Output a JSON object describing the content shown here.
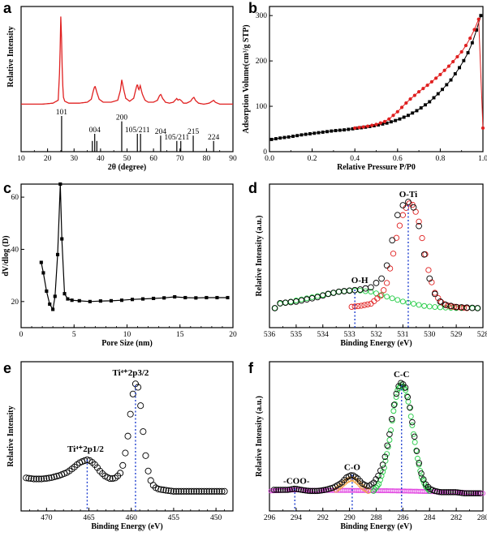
{
  "chart_data": [
    {
      "type": "line",
      "panel": "a",
      "xlabel": "2θ (degree)",
      "ylabel": "Relative Intensity",
      "xlim": [
        10,
        90
      ],
      "xticks": [
        "10",
        "20",
        "30",
        "40",
        "50",
        "60",
        "70",
        "80",
        "90"
      ],
      "colors": {
        "pattern": "#e02020",
        "reference": "#000000"
      },
      "series": [
        {
          "x": [
            10,
            14,
            18,
            22,
            24,
            24.6,
            25.0,
            25.3,
            25.6,
            26.0,
            26.5,
            28,
            32,
            35,
            36.5,
            37.3,
            37.9,
            38.6,
            39.5,
            41,
            44,
            46.5,
            47.5,
            48.0,
            48.6,
            49.5,
            51,
            52.5,
            53.4,
            53.9,
            54.4,
            55.0,
            55.8,
            56.8,
            58,
            60,
            61.5,
            62.3,
            62.8,
            63.4,
            64.5,
            66,
            67.5,
            68.5,
            68.8,
            69.2,
            69.8,
            70.3,
            70.7,
            71.3,
            72.5,
            74,
            74.8,
            75.3,
            75.8,
            77,
            79,
            81,
            82.2,
            82.7,
            83.3,
            85,
            87,
            90
          ],
          "y": [
            0.08,
            0.08,
            0.08,
            0.09,
            0.12,
            0.45,
            0.98,
            0.72,
            0.33,
            0.15,
            0.11,
            0.09,
            0.09,
            0.1,
            0.13,
            0.22,
            0.27,
            0.2,
            0.13,
            0.1,
            0.1,
            0.12,
            0.22,
            0.33,
            0.25,
            0.14,
            0.11,
            0.14,
            0.24,
            0.29,
            0.22,
            0.27,
            0.18,
            0.12,
            0.1,
            0.1,
            0.12,
            0.17,
            0.18,
            0.14,
            0.1,
            0.09,
            0.1,
            0.13,
            0.14,
            0.12,
            0.13,
            0.12,
            0.11,
            0.09,
            0.09,
            0.11,
            0.14,
            0.15,
            0.12,
            0.09,
            0.08,
            0.09,
            0.11,
            0.12,
            0.1,
            0.08,
            0.08,
            0.08
          ]
        }
      ],
      "reference_lines": [
        {
          "x": 25.3,
          "h": 1.0,
          "label": "101"
        },
        {
          "x": 36.9,
          "h": 0.3,
          "label": ""
        },
        {
          "x": 37.8,
          "h": 0.5,
          "label": "004"
        },
        {
          "x": 38.6,
          "h": 0.3,
          "label": ""
        },
        {
          "x": 48.0,
          "h": 0.85,
          "label": "200"
        },
        {
          "x": 53.9,
          "h": 0.5,
          "label": "105/211"
        },
        {
          "x": 55.1,
          "h": 0.5,
          "label": ""
        },
        {
          "x": 62.7,
          "h": 0.45,
          "label": "204"
        },
        {
          "x": 68.8,
          "h": 0.3,
          "label": "105/211"
        },
        {
          "x": 70.3,
          "h": 0.3,
          "label": ""
        },
        {
          "x": 75.0,
          "h": 0.45,
          "label": "215"
        },
        {
          "x": 82.7,
          "h": 0.3,
          "label": "224"
        }
      ]
    },
    {
      "type": "line",
      "panel": "b",
      "xlabel": "Relative Pressure P/P0",
      "ylabel": "Adsorption Volume(cm³/g STP)",
      "xlim": [
        0,
        1
      ],
      "ylim": [
        0,
        320
      ],
      "xticks": [
        "0.0",
        "0.2",
        "0.4",
        "0.6",
        "0.8",
        "1.0"
      ],
      "yticks": [
        "0",
        "100",
        "200",
        "300"
      ],
      "colors": {
        "adsorption": "#000000",
        "desorption": "#e02020"
      },
      "series": [
        {
          "name": "adsorption",
          "marker": "square",
          "x": [
            0.01,
            0.05,
            0.1,
            0.15,
            0.2,
            0.25,
            0.3,
            0.35,
            0.4,
            0.45,
            0.5,
            0.55,
            0.6,
            0.65,
            0.7,
            0.75,
            0.8,
            0.85,
            0.9,
            0.93,
            0.95,
            0.97,
            0.98,
            0.99,
            1.0
          ],
          "y": [
            27,
            30,
            33,
            37,
            40,
            43,
            46,
            48,
            51,
            54,
            58,
            63,
            70,
            80,
            93,
            110,
            132,
            158,
            192,
            218,
            240,
            268,
            285,
            300,
            315
          ]
        },
        {
          "name": "desorption",
          "marker": "circle",
          "x": [
            1.0,
            0.99,
            0.98,
            0.97,
            0.95,
            0.92,
            0.9,
            0.85,
            0.8,
            0.75,
            0.7,
            0.65,
            0.6,
            0.55,
            0.5,
            0.45,
            0.4
          ],
          "y": [
            318,
            305,
            292,
            280,
            258,
            234,
            220,
            193,
            170,
            150,
            132,
            112,
            88,
            68,
            60,
            55,
            52
          ]
        }
      ]
    },
    {
      "type": "line",
      "panel": "c",
      "xlabel": "Pore Size (nm)",
      "ylabel": "dV/dlog (D)",
      "xlim": [
        0,
        20
      ],
      "ylim": [
        10,
        65
      ],
      "xticks": [
        "0",
        "5",
        "10",
        "15",
        "20"
      ],
      "yticks": [
        "20",
        "40",
        "60"
      ],
      "colors": {
        "series": "#000000"
      },
      "series": [
        {
          "marker": "square",
          "x": [
            1.9,
            2.1,
            2.4,
            2.7,
            3.0,
            3.2,
            3.45,
            3.7,
            3.85,
            4.1,
            4.4,
            4.8,
            5.5,
            6.5,
            7.5,
            8.5,
            9.5,
            10.5,
            11.5,
            12.5,
            13.5,
            14.5,
            15.5,
            16.5,
            17.5,
            18.5,
            19.5
          ],
          "y": [
            35,
            31,
            24,
            19,
            17,
            22,
            38,
            65,
            44,
            23,
            21,
            20.5,
            20.3,
            20,
            20.2,
            20.3,
            20.5,
            20.8,
            21,
            21.2,
            21.4,
            21.8,
            21.5,
            21.4,
            21.5,
            21.5,
            21.5
          ]
        }
      ]
    },
    {
      "type": "scatter",
      "panel": "d",
      "xlabel": "Binding Energy (eV)",
      "ylabel": "Relative Intensity (a.u.)",
      "xlim": [
        536,
        528
      ],
      "xticks": [
        "536",
        "535",
        "534",
        "533",
        "532",
        "531",
        "530",
        "529",
        "528"
      ],
      "annotations": [
        {
          "text": "O-Ti",
          "x": 530.8
        },
        {
          "text": "O-H",
          "x": 532.8
        }
      ],
      "colors": {
        "data": "#000000",
        "component_OTi": "#e02020",
        "component_OH": "#22cc44",
        "marker_line": "#2040d0"
      },
      "series": [
        {
          "name": "data",
          "x": [
            535.8,
            535.4,
            535.0,
            534.6,
            534.2,
            533.8,
            533.4,
            533.0,
            532.6,
            532.2,
            531.8,
            531.6,
            531.4,
            531.2,
            531.0,
            530.8,
            530.6,
            530.4,
            530.2,
            530.0,
            529.8,
            529.6,
            529.4,
            529.2,
            529.0,
            528.6,
            528.2
          ],
          "y": [
            0.07,
            0.08,
            0.09,
            0.11,
            0.13,
            0.16,
            0.18,
            0.19,
            0.2,
            0.22,
            0.3,
            0.42,
            0.65,
            0.88,
            0.97,
            1.0,
            0.95,
            0.78,
            0.52,
            0.3,
            0.16,
            0.09,
            0.06,
            0.05,
            0.04,
            0.035,
            0.03
          ]
        },
        {
          "name": "O-Ti",
          "x": [
            533.0,
            532.6,
            532.2,
            531.8,
            531.6,
            531.4,
            531.2,
            531.0,
            530.8,
            530.6,
            530.4,
            530.2,
            530.0,
            529.8,
            529.6,
            529.4,
            529.2,
            529.0,
            528.6
          ],
          "y": [
            0.04,
            0.05,
            0.07,
            0.15,
            0.26,
            0.48,
            0.72,
            0.88,
            0.99,
            0.97,
            0.82,
            0.57,
            0.33,
            0.17,
            0.09,
            0.06,
            0.045,
            0.04,
            0.03
          ]
        },
        {
          "name": "O-H",
          "x": [
            535.8,
            535.4,
            535.0,
            534.6,
            534.2,
            533.8,
            533.4,
            533.0,
            532.6,
            532.2,
            531.8,
            531.4,
            531.0,
            530.6,
            530.2,
            529.8,
            529.4,
            529.0,
            528.6,
            528.2
          ],
          "y": [
            0.06,
            0.08,
            0.1,
            0.12,
            0.14,
            0.16,
            0.18,
            0.19,
            0.19,
            0.18,
            0.15,
            0.12,
            0.09,
            0.07,
            0.05,
            0.04,
            0.035,
            0.03,
            0.03,
            0.03
          ]
        }
      ]
    },
    {
      "type": "scatter",
      "panel": "e",
      "xlabel": "Binding Energy (eV)",
      "ylabel": "Relative Intensity",
      "xlim": [
        473,
        448
      ],
      "xticks": [
        "470",
        "465",
        "460",
        "455",
        "450"
      ],
      "annotations": [
        {
          "text": "Ti⁴⁺2p3/2",
          "x": 459.5
        },
        {
          "text": "Ti⁴⁺2p1/2",
          "x": 465.2
        }
      ],
      "colors": {
        "data": "#000000",
        "marker_line": "#2040d0"
      },
      "series": [
        {
          "name": "data",
          "x": [
            472.5,
            471.5,
            470.5,
            469.5,
            468.5,
            467.5,
            466.8,
            466.2,
            465.6,
            465.2,
            464.8,
            464.2,
            463.6,
            463.0,
            462.4,
            461.8,
            461.2,
            460.8,
            460.4,
            460.0,
            459.7,
            459.4,
            459.1,
            458.8,
            458.5,
            458.2,
            457.8,
            457.3,
            456.8,
            456.0,
            455,
            454,
            453,
            452,
            451,
            450,
            449
          ],
          "y": [
            0.15,
            0.14,
            0.14,
            0.15,
            0.17,
            0.2,
            0.24,
            0.28,
            0.3,
            0.31,
            0.3,
            0.26,
            0.2,
            0.16,
            0.14,
            0.15,
            0.2,
            0.32,
            0.52,
            0.78,
            0.95,
            1.0,
            0.93,
            0.72,
            0.48,
            0.28,
            0.14,
            0.07,
            0.05,
            0.04,
            0.03,
            0.03,
            0.03,
            0.03,
            0.03,
            0.03,
            0.03
          ]
        }
      ]
    },
    {
      "type": "scatter",
      "panel": "f",
      "xlabel": "Binding Energy (eV)",
      "ylabel": "Relative Intensity (a.u.)",
      "xlim": [
        296,
        280
      ],
      "xticks": [
        "296",
        "294",
        "292",
        "290",
        "288",
        "286",
        "284",
        "282",
        "280"
      ],
      "annotations": [
        {
          "text": "C-C",
          "x": 286.1
        },
        {
          "text": "C-O",
          "x": 289.8
        },
        {
          "text": "-COO-",
          "x": 294.1
        }
      ],
      "colors": {
        "data": "#000000",
        "component_CC": "#22cc44",
        "component_CO": "#f0a040",
        "component_COO": "#cc33cc",
        "baseline": "#e040e0",
        "marker_line": "#2040d0"
      },
      "series": [
        {
          "name": "data",
          "x": [
            295.8,
            295.2,
            294.6,
            294.1,
            293.6,
            293.0,
            292.4,
            291.8,
            291.2,
            290.6,
            290.2,
            289.8,
            289.4,
            289.0,
            288.6,
            288.2,
            287.8,
            287.4,
            287.0,
            286.7,
            286.4,
            286.1,
            285.8,
            285.5,
            285.2,
            284.9,
            284.6,
            284.3,
            284.0,
            283.6,
            283.2,
            282.6,
            282.0,
            281.4,
            280.8,
            280.2
          ],
          "y": [
            0.07,
            0.07,
            0.07,
            0.08,
            0.07,
            0.06,
            0.06,
            0.07,
            0.09,
            0.13,
            0.18,
            0.2,
            0.17,
            0.12,
            0.1,
            0.13,
            0.2,
            0.32,
            0.55,
            0.78,
            0.95,
            1.0,
            0.95,
            0.8,
            0.58,
            0.36,
            0.2,
            0.12,
            0.08,
            0.06,
            0.05,
            0.05,
            0.05,
            0.04,
            0.04,
            0.04
          ]
        },
        {
          "name": "C-C",
          "x": [
            288.2,
            287.8,
            287.4,
            287.0,
            286.7,
            286.4,
            286.1,
            285.8,
            285.5,
            285.2,
            284.9,
            284.6,
            284.3,
            284.0
          ],
          "y": [
            0.06,
            0.12,
            0.26,
            0.5,
            0.75,
            0.93,
            0.98,
            0.93,
            0.78,
            0.55,
            0.34,
            0.18,
            0.1,
            0.06
          ]
        },
        {
          "name": "C-O",
          "x": [
            291.0,
            290.6,
            290.2,
            289.8,
            289.4,
            289.0,
            288.6
          ],
          "y": [
            0.07,
            0.11,
            0.15,
            0.17,
            0.14,
            0.09,
            0.06
          ]
        },
        {
          "name": "baseline",
          "x": [
            296,
            295,
            294,
            293,
            292,
            291,
            290,
            289,
            288,
            287,
            286,
            285,
            284,
            283,
            282,
            281,
            280
          ],
          "y": [
            0.06,
            0.065,
            0.07,
            0.065,
            0.065,
            0.065,
            0.065,
            0.064,
            0.063,
            0.062,
            0.06,
            0.058,
            0.055,
            0.052,
            0.05,
            0.045,
            0.04
          ]
        }
      ]
    }
  ],
  "panel_letters": [
    "a",
    "b",
    "c",
    "d",
    "e",
    "f"
  ]
}
